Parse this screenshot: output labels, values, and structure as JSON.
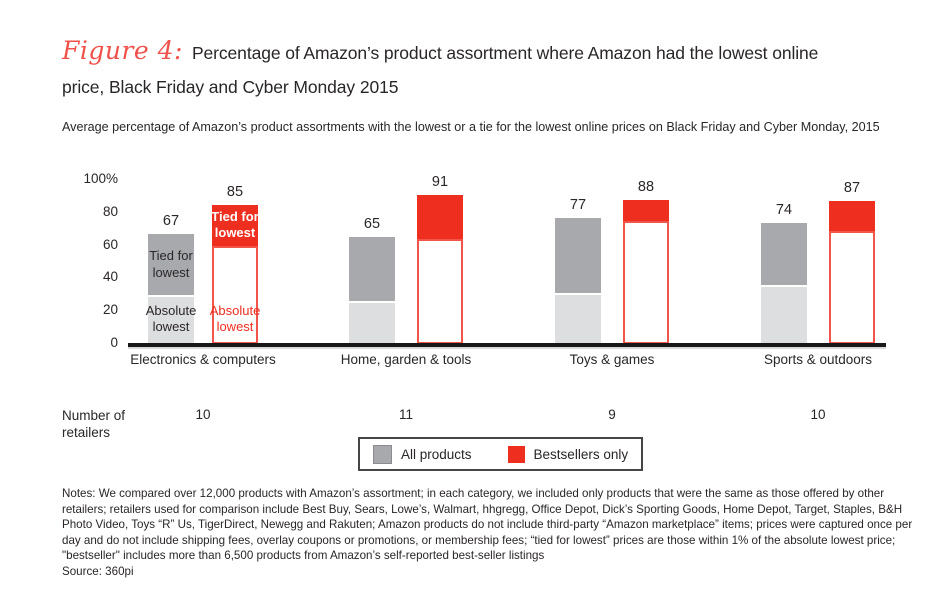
{
  "figure_label": "Figure 4:",
  "title": "Percentage of Amazon’s product assortment where Amazon had the lowest online price, Black Friday and Cyber Monday 2015",
  "subtitle": "Average percentage of Amazon’s product assortments with the lowest or a tie for the lowest online prices on Black Friday and Cyber Monday, 2015",
  "retailers_row_label": "Number of retailers",
  "notes": "Notes: We compared over 12,000 products with Amazon’s assortment; in each category, we included only products that were the same as those offered by other retailers; retailers used for comparison include Best Buy, Sears, Lowe’s, Walmart, hhgregg, Office Depot, Dick’s Sporting Goods, Home Depot, Target, Staples, B&H Photo Video, Toys “R” Us, TigerDirect, Newegg and Rakuten; Amazon products do not include third-party “Amazon marketplace” items; prices were captured once per day and do not include shipping fees, overlay coupons or promotions, or membership fees; “tied for lowest” prices are those within 1% of the absolute lowest price; \"bestseller\"  includes more than 6,500 products from Amazon’s self-reported best-seller listings",
  "source": "Source: 360pi",
  "colors": {
    "accent_red": "#ee2e1f",
    "red_outline": "#f2564a",
    "dark_gray": "#a7a9ac",
    "light_gray": "#dddee0",
    "text": "#2a2627",
    "script_red": "#f0514a"
  },
  "chart_data": {
    "type": "bar",
    "variant": "paired-stacked-columns",
    "unit": "percent",
    "grid": false,
    "y_axis": {
      "range": [
        0,
        100
      ],
      "ticks": [
        {
          "label": "100%",
          "value": 100
        },
        {
          "label": "80",
          "value": 80
        },
        {
          "label": "60",
          "value": 60
        },
        {
          "label": "40",
          "value": 40
        },
        {
          "label": "20",
          "value": 20
        },
        {
          "label": "0",
          "value": 0
        }
      ]
    },
    "legend": [
      {
        "label": "All products",
        "color": "#a7a9ac"
      },
      {
        "label": "Bestsellers only",
        "color": "#ee2e1f"
      }
    ],
    "segment_labels": {
      "tied_for_lowest": "Tied for lowest",
      "absolute_lowest": "Absolute lowest"
    },
    "groups": [
      {
        "category": "Electronics & computers",
        "retailers": 10,
        "show_segment_labels": true,
        "all_products": {
          "total": 67,
          "absolute_lowest": 30,
          "tied_for_lowest": 37
        },
        "bestsellers_only": {
          "total": 85,
          "absolute_lowest": 60,
          "tied_for_lowest": 25
        }
      },
      {
        "category": "Home, garden & tools",
        "retailers": 11,
        "show_segment_labels": false,
        "all_products": {
          "total": 65,
          "absolute_lowest": 26,
          "tied_for_lowest": 39
        },
        "bestsellers_only": {
          "total": 91,
          "absolute_lowest": 64,
          "tied_for_lowest": 27
        }
      },
      {
        "category": "Toys & games",
        "retailers": 9,
        "show_segment_labels": false,
        "all_products": {
          "total": 77,
          "absolute_lowest": 31,
          "tied_for_lowest": 46
        },
        "bestsellers_only": {
          "total": 88,
          "absolute_lowest": 75,
          "tied_for_lowest": 13
        }
      },
      {
        "category": "Sports & outdoors",
        "retailers": 10,
        "show_segment_labels": false,
        "all_products": {
          "total": 74,
          "absolute_lowest": 36,
          "tied_for_lowest": 38
        },
        "bestsellers_only": {
          "total": 87,
          "absolute_lowest": 69,
          "tied_for_lowest": 18
        }
      }
    ]
  }
}
